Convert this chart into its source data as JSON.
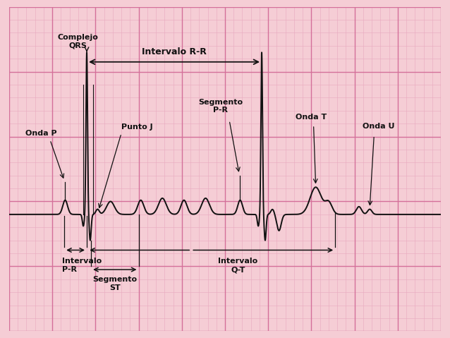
{
  "bg_color": "#f5cdd5",
  "grid_major_color": "#d4709a",
  "grid_minor_color": "#e8a8be",
  "ecg_color": "#111111",
  "text_color": "#111111",
  "arrow_color": "#111111",
  "figsize": [
    6.38,
    4.79
  ],
  "dpi": 100,
  "xlim": [
    0,
    10
  ],
  "ylim": [
    -1.8,
    3.2
  ],
  "minor_step": 0.2,
  "major_step": 1.0,
  "font_size": 8,
  "rr_font_size": 9
}
